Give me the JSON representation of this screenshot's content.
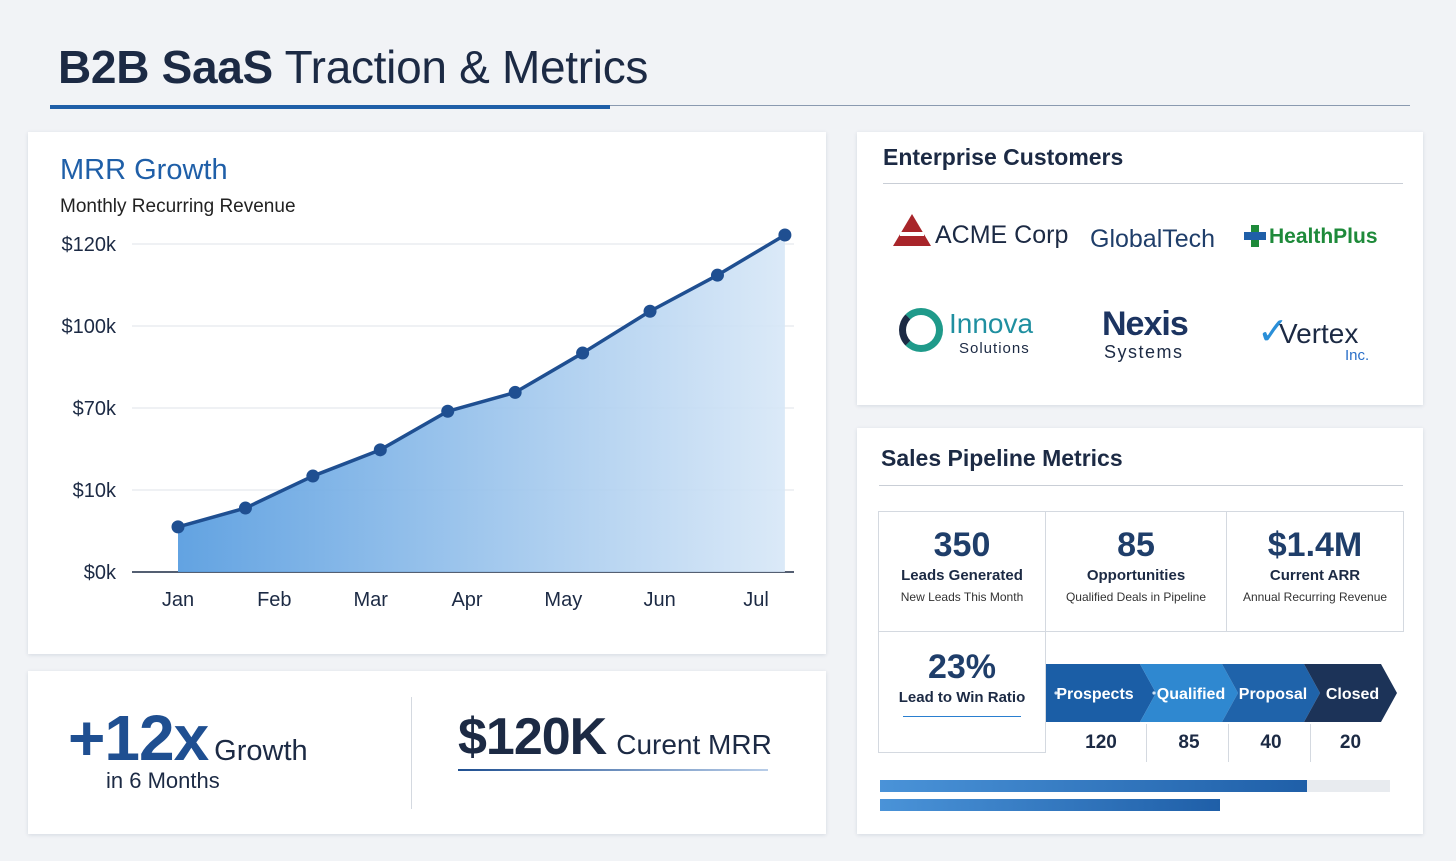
{
  "page": {
    "title_bold": "B2B SaaS",
    "title_light": "Traction & Metrics"
  },
  "mrr": {
    "title": "MRR Growth",
    "subtitle": "Monthly Recurring Revenue"
  },
  "chart_data": {
    "type": "area",
    "title": "MRR Growth",
    "subtitle": "Monthly Recurring Revenue",
    "categories": [
      "Jan",
      "Feb",
      "Mar",
      "Apr",
      "May",
      "Jun",
      "Jul"
    ],
    "y_tick_labels": [
      "$0k",
      "$10k",
      "$70k",
      "$100k",
      "$120k"
    ],
    "series": [
      {
        "name": "MRR",
        "points": [
          {
            "x": 0.0,
            "y": 0.55
          },
          {
            "x": 0.7,
            "y": 0.78
          },
          {
            "x": 1.4,
            "y": 1.17
          },
          {
            "x": 2.1,
            "y": 1.49
          },
          {
            "x": 2.8,
            "y": 1.96
          },
          {
            "x": 3.5,
            "y": 2.19
          },
          {
            "x": 4.2,
            "y": 2.67
          },
          {
            "x": 4.9,
            "y": 3.18
          },
          {
            "x": 5.6,
            "y": 3.62
          },
          {
            "x": 6.3,
            "y": 4.11
          }
        ]
      }
    ],
    "ylim": [
      0,
      4
    ],
    "grid": true,
    "xlabel": "",
    "ylabel": ""
  },
  "growth": {
    "big": "+12x",
    "word": "Growth",
    "sub": "in 6 Months",
    "mrr_big": "$120K",
    "mrr_word": "Curent MRR"
  },
  "customers": {
    "heading": "Enterprise Customers",
    "acme": "ACME Corp",
    "global": "GlobalTech",
    "health": "HealthPlus",
    "innova_name": "Innova",
    "innova_sub": "Solutions",
    "nexis_name": "Nexis",
    "nexis_sub": "Systems",
    "vertex_name": "Vertex",
    "vertex_sub": "Inc."
  },
  "pipeline": {
    "heading": "Sales Pipeline Metrics",
    "metrics": [
      {
        "value": "350",
        "label": "Leads Generated",
        "desc": "New Leads This Month"
      },
      {
        "value": "85",
        "label": "Opportunities",
        "desc": "Qualified Deals in Pipeline"
      },
      {
        "value": "$1.4M",
        "label": "Current ARR",
        "desc": "Annual Recurring Revenue"
      },
      {
        "value": "23%",
        "label": "Lead to Win Ratio",
        "desc": ""
      }
    ],
    "stages": [
      {
        "label": "Prospects",
        "count": "120",
        "color": "#1b5ea6"
      },
      {
        "label": "Qualified",
        "count": "85",
        "color": "#2f88d0"
      },
      {
        "label": "Proposal",
        "count": "40",
        "color": "#1f63aa"
      },
      {
        "label": "Closed",
        "count": "20",
        "color": "#1c3358"
      }
    ],
    "progress": [
      0.837,
      0.667
    ]
  }
}
